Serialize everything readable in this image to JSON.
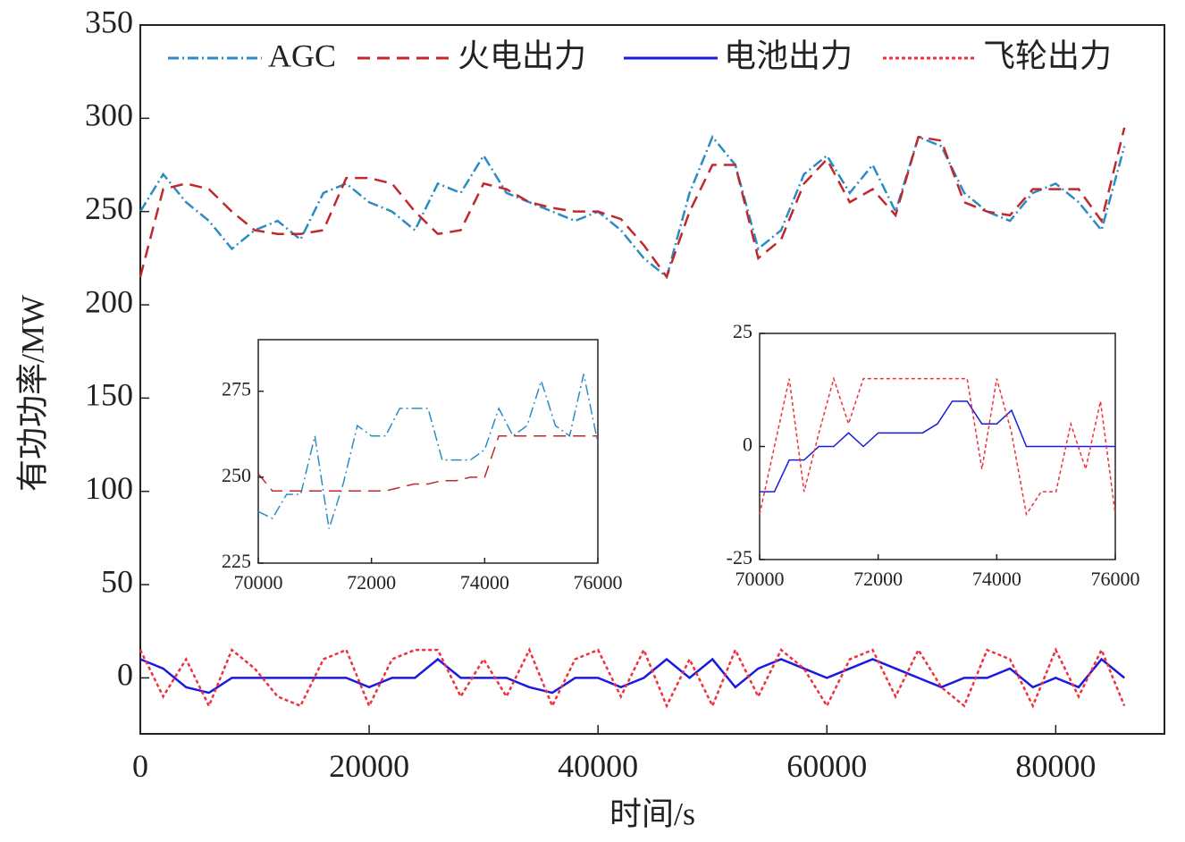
{
  "chart_data": [
    {
      "type": "line",
      "xlabel": "时间/s",
      "ylabel": "有功功率/MW",
      "xlim": [
        0,
        89500
      ],
      "ylim": [
        -30,
        350
      ],
      "xticks": [
        0,
        20000,
        40000,
        60000,
        80000
      ],
      "yticks": [
        0,
        50,
        100,
        150,
        200,
        250,
        300,
        350
      ],
      "x": [
        0,
        2000,
        4000,
        6000,
        8000,
        10000,
        12000,
        14000,
        16000,
        18000,
        20000,
        22000,
        24000,
        26000,
        28000,
        30000,
        32000,
        34000,
        36000,
        38000,
        40000,
        42000,
        44000,
        46000,
        48000,
        50000,
        52000,
        54000,
        56000,
        58000,
        60000,
        62000,
        64000,
        66000,
        68000,
        70000,
        72000,
        74000,
        76000,
        78000,
        80000,
        82000,
        84000,
        86000
      ],
      "series": [
        {
          "name": "AGC",
          "color": "#2b8cc4",
          "dash": "dashdot",
          "values": [
            250,
            270,
            255,
            245,
            230,
            240,
            245,
            235,
            260,
            265,
            255,
            250,
            240,
            265,
            260,
            280,
            260,
            255,
            250,
            245,
            250,
            240,
            225,
            215,
            260,
            290,
            275,
            230,
            240,
            270,
            280,
            260,
            275,
            250,
            290,
            285,
            260,
            250,
            245,
            260,
            265,
            255,
            240,
            285
          ]
        },
        {
          "name": "火电出力",
          "color": "#c0282e",
          "dash": "dashed",
          "values": [
            215,
            262,
            265,
            262,
            250,
            240,
            238,
            238,
            240,
            268,
            268,
            265,
            250,
            238,
            240,
            265,
            262,
            255,
            252,
            250,
            250,
            246,
            232,
            215,
            250,
            275,
            275,
            225,
            235,
            265,
            278,
            255,
            262,
            248,
            290,
            288,
            255,
            250,
            248,
            262,
            262,
            262,
            245,
            295
          ]
        },
        {
          "name": "电池出力",
          "color": "#1a1ae0",
          "dash": "solid",
          "values": [
            10,
            5,
            -5,
            -8,
            0,
            0,
            0,
            0,
            0,
            0,
            -5,
            0,
            0,
            10,
            0,
            0,
            0,
            -5,
            -8,
            0,
            0,
            -5,
            0,
            10,
            0,
            10,
            -5,
            5,
            10,
            5,
            0,
            5,
            10,
            5,
            0,
            -5,
            0,
            0,
            5,
            -5,
            0,
            -5,
            10,
            0
          ]
        },
        {
          "name": "飞轮出力",
          "color": "#f0303c",
          "dash": "dotted",
          "values": [
            15,
            -10,
            10,
            -15,
            15,
            5,
            -10,
            -15,
            10,
            15,
            -15,
            10,
            15,
            15,
            -10,
            10,
            -10,
            15,
            -15,
            10,
            15,
            -10,
            15,
            -15,
            10,
            -15,
            15,
            -10,
            15,
            5,
            -15,
            10,
            15,
            -10,
            15,
            -5,
            -15,
            15,
            10,
            -15,
            15,
            -10,
            15,
            -15
          ]
        }
      ]
    },
    {
      "type": "line",
      "xlim": [
        70000,
        76000
      ],
      "ylim": [
        225,
        290
      ],
      "xticks": [
        70000,
        72000,
        74000,
        76000
      ],
      "yticks": [
        225,
        250,
        275
      ],
      "x": [
        70000,
        70250,
        70500,
        70750,
        71000,
        71250,
        71500,
        71750,
        72000,
        72250,
        72500,
        72750,
        73000,
        73250,
        73500,
        73750,
        74000,
        74250,
        74500,
        74750,
        75000,
        75250,
        75500,
        75750,
        76000
      ],
      "series": [
        {
          "color": "#2b8cc4",
          "dash": "dashdot",
          "values": [
            240,
            238,
            245,
            245,
            262,
            235,
            248,
            265,
            262,
            262,
            270,
            270,
            270,
            255,
            255,
            255,
            258,
            270,
            262,
            265,
            278,
            265,
            262,
            280,
            260
          ]
        },
        {
          "color": "#c0282e",
          "dash": "dashed",
          "values": [
            251,
            246,
            246,
            246,
            246,
            246,
            246,
            246,
            246,
            246,
            247,
            248,
            248,
            249,
            249,
            250,
            250,
            262,
            262,
            262,
            262,
            262,
            262,
            262,
            262
          ]
        }
      ]
    },
    {
      "type": "line",
      "xlim": [
        70000,
        76000
      ],
      "ylim": [
        -25,
        25
      ],
      "xticks": [
        70000,
        72000,
        74000,
        76000
      ],
      "yticks": [
        -25,
        0,
        25
      ],
      "x": [
        70000,
        70250,
        70500,
        70750,
        71000,
        71250,
        71500,
        71750,
        72000,
        72250,
        72500,
        72750,
        73000,
        73250,
        73500,
        73750,
        74000,
        74250,
        74500,
        74750,
        75000,
        75250,
        75500,
        75750,
        76000
      ],
      "series": [
        {
          "color": "#1a1ae0",
          "dash": "solid",
          "values": [
            -10,
            -10,
            -3,
            -3,
            0,
            0,
            3,
            0,
            3,
            3,
            3,
            3,
            5,
            10,
            10,
            5,
            5,
            8,
            0,
            0,
            0,
            0,
            0,
            0,
            0
          ]
        },
        {
          "color": "#f0303c",
          "dash": "dotted",
          "values": [
            -15,
            0,
            15,
            -10,
            3,
            15,
            5,
            15,
            15,
            15,
            15,
            15,
            15,
            15,
            15,
            -5,
            15,
            3,
            -15,
            -10,
            -10,
            5,
            -5,
            10,
            -15
          ]
        }
      ]
    }
  ]
}
